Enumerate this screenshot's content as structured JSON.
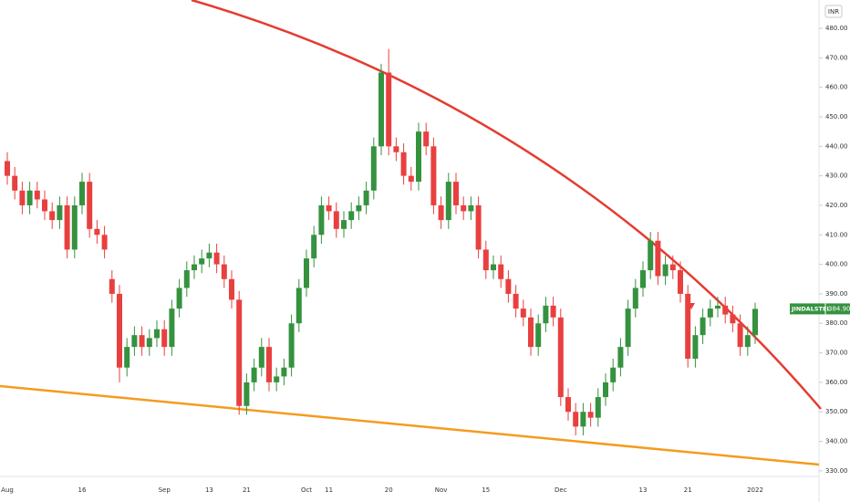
{
  "chart_data": {
    "type": "candlestick",
    "currency": "INR",
    "price_tag": {
      "symbol": "JINDALSTEL",
      "value": 384.9,
      "label": "384.90"
    },
    "up_color": "#35923f",
    "down_color": "#e8403f",
    "ylim": [
      328.1,
      489.6
    ],
    "yticks": [
      {
        "value": 330,
        "label": "330.00"
      },
      {
        "value": 340,
        "label": "340.00"
      },
      {
        "value": 350,
        "label": "350.00"
      },
      {
        "value": 360,
        "label": "360.00"
      },
      {
        "value": 370,
        "label": "370.00"
      },
      {
        "value": 380,
        "label": "380.00"
      },
      {
        "value": 390,
        "label": "390.00"
      },
      {
        "value": 400,
        "label": "400.00"
      },
      {
        "value": 410,
        "label": "410.00"
      },
      {
        "value": 420,
        "label": "420.00"
      },
      {
        "value": 430,
        "label": "430.00"
      },
      {
        "value": 440,
        "label": "440.00"
      },
      {
        "value": 450,
        "label": "450.00"
      },
      {
        "value": 460,
        "label": "460.00"
      },
      {
        "value": 470,
        "label": "470.00"
      },
      {
        "value": 480,
        "label": "480.00"
      }
    ],
    "grid": false,
    "categories": [
      "Aug",
      null,
      null,
      null,
      null,
      null,
      null,
      null,
      null,
      null,
      "16",
      null,
      null,
      null,
      null,
      null,
      null,
      null,
      null,
      null,
      null,
      "Sep",
      null,
      null,
      null,
      null,
      null,
      "13",
      null,
      null,
      null,
      null,
      "21",
      null,
      null,
      null,
      null,
      null,
      null,
      null,
      "Oct",
      null,
      null,
      "11",
      null,
      null,
      null,
      null,
      null,
      null,
      null,
      "20",
      null,
      null,
      null,
      null,
      null,
      null,
      "Nov",
      null,
      null,
      null,
      null,
      null,
      "15",
      null,
      null,
      null,
      null,
      null,
      null,
      null,
      null,
      null,
      "Dec",
      null,
      null,
      null,
      null,
      null,
      null,
      null,
      null,
      null,
      null,
      "13",
      null,
      null,
      null,
      null,
      null,
      "21",
      null,
      null,
      null,
      null,
      null,
      null,
      null,
      null,
      "2022"
    ],
    "open": [
      435,
      430,
      425,
      420,
      425,
      422,
      418,
      415,
      420,
      405,
      420,
      428,
      412,
      410,
      395,
      390,
      365,
      372,
      376,
      372,
      375,
      378,
      372,
      385,
      392,
      398,
      400,
      402,
      404,
      400,
      395,
      388,
      352,
      360,
      365,
      372,
      360,
      362,
      365,
      380,
      392,
      402,
      410,
      420,
      418,
      412,
      415,
      418,
      420,
      425,
      440,
      465,
      440,
      438,
      430,
      428,
      445,
      440,
      420,
      415,
      428,
      420,
      418,
      420,
      405,
      398,
      400,
      395,
      390,
      385,
      382,
      372,
      380,
      386,
      382,
      355,
      350,
      345,
      350,
      348,
      355,
      360,
      365,
      372,
      385,
      392,
      398,
      408,
      396,
      400,
      398,
      390,
      368,
      376,
      382,
      385,
      386,
      383,
      380,
      372,
      376
    ],
    "high": [
      438,
      433,
      428,
      428,
      428,
      425,
      421,
      423,
      423,
      423,
      431,
      431,
      415,
      413,
      398,
      393,
      375,
      379,
      379,
      378,
      381,
      381,
      388,
      395,
      401,
      403,
      405,
      407,
      407,
      403,
      398,
      391,
      363,
      368,
      375,
      375,
      365,
      368,
      383,
      395,
      405,
      413,
      423,
      423,
      421,
      418,
      421,
      423,
      428,
      443,
      468,
      473,
      443,
      441,
      433,
      448,
      448,
      443,
      423,
      431,
      431,
      423,
      423,
      423,
      408,
      403,
      403,
      398,
      393,
      388,
      385,
      383,
      389,
      389,
      385,
      358,
      353,
      353,
      353,
      358,
      363,
      368,
      375,
      388,
      395,
      401,
      411,
      411,
      403,
      403,
      401,
      393,
      379,
      385,
      388,
      389,
      389,
      386,
      383,
      379,
      387
    ],
    "low": [
      427,
      422,
      417,
      417,
      419,
      415,
      412,
      412,
      402,
      402,
      417,
      409,
      407,
      402,
      387,
      360,
      362,
      369,
      369,
      369,
      372,
      369,
      369,
      382,
      389,
      395,
      397,
      399,
      397,
      392,
      385,
      349,
      349,
      357,
      362,
      357,
      357,
      359,
      362,
      377,
      389,
      399,
      407,
      415,
      409,
      409,
      412,
      415,
      417,
      422,
      437,
      437,
      435,
      427,
      425,
      425,
      437,
      417,
      412,
      412,
      417,
      415,
      415,
      402,
      395,
      395,
      392,
      387,
      382,
      379,
      369,
      369,
      377,
      379,
      352,
      347,
      342,
      342,
      345,
      345,
      352,
      357,
      362,
      369,
      382,
      389,
      395,
      393,
      393,
      395,
      387,
      365,
      365,
      373,
      379,
      382,
      380,
      377,
      369,
      369,
      373
    ],
    "close": [
      430,
      425,
      420,
      425,
      422,
      418,
      415,
      420,
      405,
      420,
      428,
      412,
      410,
      405,
      390,
      365,
      372,
      376,
      372,
      375,
      378,
      372,
      385,
      392,
      398,
      400,
      402,
      404,
      400,
      395,
      388,
      352,
      360,
      365,
      372,
      360,
      362,
      365,
      380,
      392,
      402,
      410,
      420,
      418,
      412,
      415,
      418,
      420,
      425,
      440,
      465,
      440,
      438,
      430,
      428,
      445,
      440,
      420,
      415,
      428,
      420,
      418,
      420,
      405,
      398,
      400,
      395,
      390,
      385,
      382,
      372,
      380,
      386,
      382,
      355,
      350,
      345,
      350,
      348,
      355,
      360,
      365,
      372,
      385,
      392,
      398,
      408,
      396,
      400,
      398,
      390,
      368,
      376,
      382,
      385,
      386,
      383,
      380,
      372,
      376,
      384.9
    ]
  }
}
